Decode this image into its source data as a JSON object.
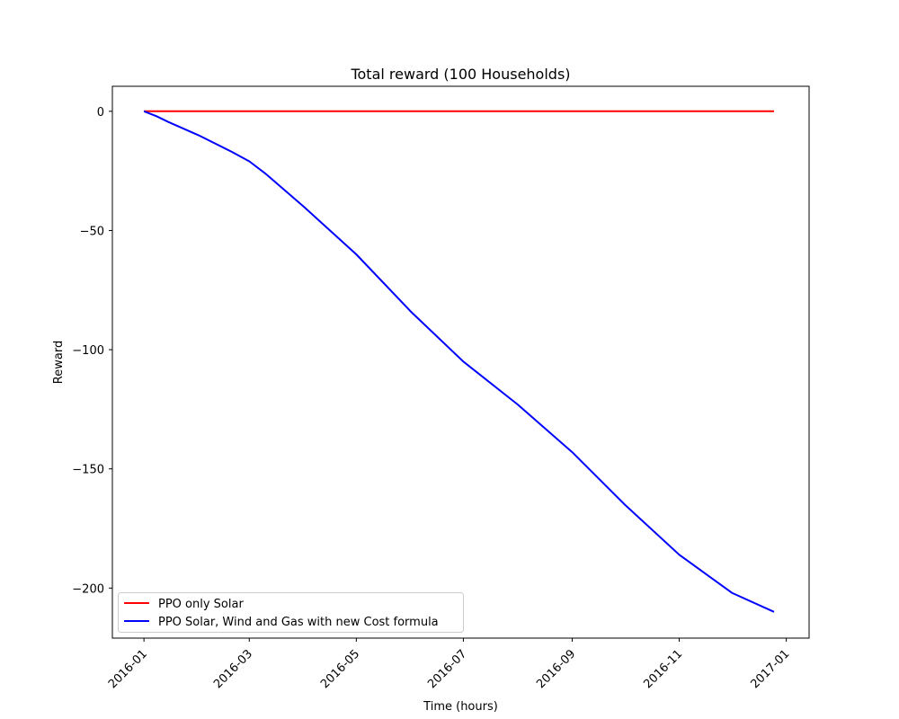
{
  "chart_data": {
    "type": "line",
    "title": "Total reward (100 Households)",
    "xlabel": "Time (hours)",
    "ylabel": "Reward",
    "x_tick_labels": [
      "2016-01",
      "2016-03",
      "2016-05",
      "2016-07",
      "2016-09",
      "2016-11",
      "2017-01"
    ],
    "y_tick_labels": [
      "0",
      "−50",
      "−100",
      "−150",
      "−200"
    ],
    "xlim": [
      "2015-12-14",
      "2017-01-14"
    ],
    "ylim": [
      -221,
      10.5
    ],
    "grid": false,
    "legend_position": "lower-left",
    "series": [
      {
        "name": "PPO only Solar",
        "color": "#ff0000",
        "x": [
          "2016-01-01",
          "2016-12-25"
        ],
        "y": [
          0,
          0
        ]
      },
      {
        "name": "PPO Solar, Wind and Gas with new Cost formula",
        "color": "#0000ff",
        "x": [
          "2016-01-01",
          "2016-01-08",
          "2016-01-15",
          "2016-02-01",
          "2016-02-20",
          "2016-03-01",
          "2016-03-10",
          "2016-04-01",
          "2016-05-01",
          "2016-06-01",
          "2016-07-01",
          "2016-08-01",
          "2016-09-01",
          "2016-10-01",
          "2016-11-01",
          "2016-12-01",
          "2016-12-25"
        ],
        "y": [
          0,
          -2,
          -4.5,
          -10,
          -17,
          -21,
          -26,
          -40,
          -60,
          -84,
          -105,
          -123,
          -143,
          -165,
          -186,
          -202,
          -210
        ]
      }
    ]
  }
}
